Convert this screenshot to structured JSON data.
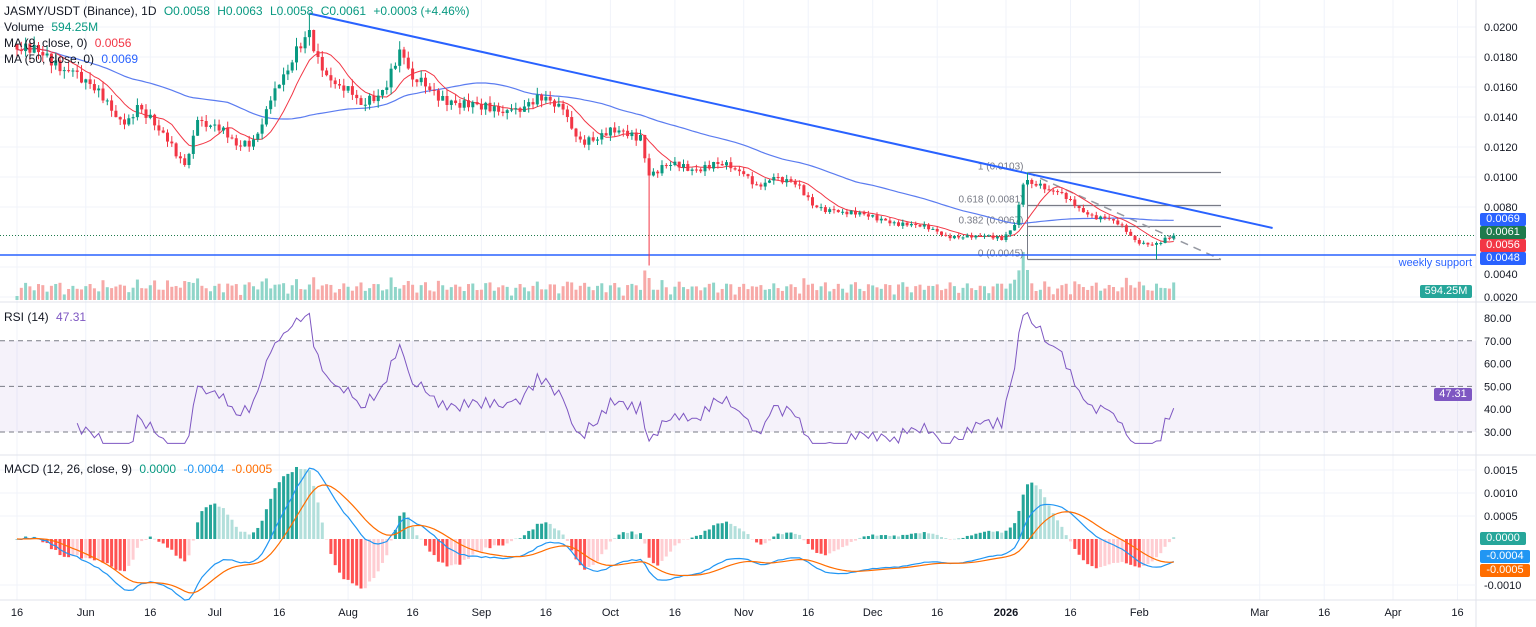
{
  "header": {
    "symbol": "JASMY/USDT (Binance), 1D",
    "open": "O0.0058",
    "high": "H0.0063",
    "low": "L0.0058",
    "close": "C0.0061",
    "change": "+0.0003 (+4.46%)",
    "volume_label": "Volume",
    "volume_value": "594.25M",
    "ma9_label": "MA (9, close, 0)",
    "ma9_value": "0.0056",
    "ma50_label": "MA (50, close, 0)",
    "ma50_value": "0.0069"
  },
  "rsi": {
    "label": "RSI (14)",
    "value": "47.31",
    "ticks": [
      "80.00",
      "70.00",
      "60.00",
      "50.00",
      "40.00",
      "30.00"
    ]
  },
  "macd": {
    "label": "MACD (12, 26, close, 9)",
    "hist": "0.0000",
    "macd": "-0.0004",
    "signal": "-0.0005",
    "ticks": [
      "0.0015",
      "0.0010",
      "0.0005",
      "-0.0010"
    ]
  },
  "badges": {
    "ma50": "0.0069",
    "price": "0.0061",
    "ma9": "0.0056",
    "support": "0.0048",
    "volume": "594.25M",
    "rsi": "47.31",
    "hist": "0.0000",
    "macd": "-0.0004",
    "signal": "-0.0005"
  },
  "annotations": {
    "support_label": "weekly support",
    "fib": [
      "1 (0.0103)",
      "0.618 (0.0081)",
      "0.382 (0.0067)",
      "0 (0.0045)"
    ]
  },
  "colors": {
    "up": "#089981",
    "down": "#f23645",
    "ma9": "#f23645",
    "ma50": "#5b7cf0",
    "trend": "#2962ff",
    "rsi": "#7e57c2",
    "macd": "#2196f3",
    "signal": "#ff6d00"
  },
  "chart_data": {
    "type": "candlestick",
    "interval": "1D",
    "y_ticks": [
      "0.0200",
      "0.0180",
      "0.0160",
      "0.0140",
      "0.0120",
      "0.0100",
      "0.0080",
      "0.0040",
      "0.0020"
    ],
    "x_ticks": [
      {
        "label": "16",
        "date": "2025-05-16"
      },
      {
        "label": "Jun",
        "date": "2025-06-01"
      },
      {
        "label": "16",
        "date": "2025-06-16"
      },
      {
        "label": "Jul",
        "date": "2025-07-01"
      },
      {
        "label": "16",
        "date": "2025-07-16"
      },
      {
        "label": "Aug",
        "date": "2025-08-01"
      },
      {
        "label": "16",
        "date": "2025-08-16"
      },
      {
        "label": "Sep",
        "date": "2025-09-01"
      },
      {
        "label": "16",
        "date": "2025-09-16"
      },
      {
        "label": "Oct",
        "date": "2025-10-01"
      },
      {
        "label": "16",
        "date": "2025-10-16"
      },
      {
        "label": "Nov",
        "date": "2025-11-01"
      },
      {
        "label": "16",
        "date": "2025-11-16"
      },
      {
        "label": "Dec",
        "date": "2025-12-01"
      },
      {
        "label": "16",
        "date": "2025-12-16"
      },
      {
        "label": "2026",
        "date": "2026-01-01"
      },
      {
        "label": "16",
        "date": "2026-01-16"
      },
      {
        "label": "Feb",
        "date": "2026-02-01"
      },
      {
        "label": "Mar",
        "date": "2026-03-01"
      },
      {
        "label": "16",
        "date": "2026-03-16"
      },
      {
        "label": "Apr",
        "date": "2026-04-01"
      },
      {
        "label": "16",
        "date": "2026-04-16"
      }
    ],
    "close_keypoints": [
      [
        "2025-05-16",
        0.0185
      ],
      [
        "2025-05-22",
        0.0181
      ],
      [
        "2025-05-29",
        0.0171
      ],
      [
        "2025-06-05",
        0.0151
      ],
      [
        "2025-06-10",
        0.0135
      ],
      [
        "2025-06-13",
        0.0148
      ],
      [
        "2025-06-18",
        0.0131
      ],
      [
        "2025-06-24",
        0.0108
      ],
      [
        "2025-06-27",
        0.0138
      ],
      [
        "2025-07-02",
        0.0131
      ],
      [
        "2025-07-06",
        0.0121
      ],
      [
        "2025-07-10",
        0.0125
      ],
      [
        "2025-07-14",
        0.0151
      ],
      [
        "2025-07-18",
        0.0171
      ],
      [
        "2025-07-23",
        0.0198
      ],
      [
        "2025-07-26",
        0.0171
      ],
      [
        "2025-07-30",
        0.0161
      ],
      [
        "2025-08-04",
        0.0148
      ],
      [
        "2025-08-09",
        0.0158
      ],
      [
        "2025-08-13",
        0.0185
      ],
      [
        "2025-08-16",
        0.0165
      ],
      [
        "2025-08-20",
        0.0158
      ],
      [
        "2025-08-25",
        0.0151
      ],
      [
        "2025-09-01",
        0.0145
      ],
      [
        "2025-09-08",
        0.0145
      ],
      [
        "2025-09-15",
        0.0151
      ],
      [
        "2025-09-20",
        0.0145
      ],
      [
        "2025-09-24",
        0.0125
      ],
      [
        "2025-09-28",
        0.0125
      ],
      [
        "2025-10-03",
        0.0131
      ],
      [
        "2025-10-08",
        0.0128
      ],
      [
        "2025-10-10",
        0.0101
      ],
      [
        "2025-10-15",
        0.0108
      ],
      [
        "2025-10-20",
        0.0105
      ],
      [
        "2025-10-25",
        0.011
      ],
      [
        "2025-10-30",
        0.0105
      ],
      [
        "2025-11-04",
        0.0095
      ],
      [
        "2025-11-08",
        0.01
      ],
      [
        "2025-11-13",
        0.0095
      ],
      [
        "2025-11-17",
        0.0081
      ],
      [
        "2025-11-22",
        0.0078
      ],
      [
        "2025-11-27",
        0.0075
      ],
      [
        "2025-12-04",
        0.0071
      ],
      [
        "2025-12-11",
        0.0068
      ],
      [
        "2025-12-18",
        0.0061
      ],
      [
        "2025-12-25",
        0.0061
      ],
      [
        "2025-12-31",
        0.0058
      ],
      [
        "2026-01-03",
        0.0068
      ],
      [
        "2026-01-05",
        0.0095
      ],
      [
        "2026-01-06",
        0.0098
      ],
      [
        "2026-01-11",
        0.0091
      ],
      [
        "2026-01-16",
        0.0085
      ],
      [
        "2026-01-20",
        0.0075
      ],
      [
        "2026-01-26",
        0.0071
      ],
      [
        "2026-01-31",
        0.0058
      ],
      [
        "2026-02-03",
        0.0055
      ],
      [
        "2026-02-05",
        0.0056
      ],
      [
        "2026-02-09",
        0.0061
      ]
    ],
    "wicks": [
      [
        "2025-07-23",
        0.0209
      ],
      [
        "2025-10-10",
        0.0041
      ],
      [
        "2026-01-06",
        0.0103
      ],
      [
        "2026-02-05",
        0.0045
      ]
    ],
    "volume_spikes": [
      "2025-10-10",
      "2026-01-05",
      "2026-01-06"
    ],
    "trendline": {
      "from": [
        "2025-07-23",
        0.0209
      ],
      "to": [
        "2026-03-04",
        0.0066
      ]
    },
    "support": 0.0048,
    "current_price": 0.0061,
    "fib": {
      "from": "2026-01-06",
      "to": "2026-02-20",
      "levels": [
        0.0103,
        0.0081,
        0.0067,
        0.0045
      ]
    },
    "rsi_levels": [
      70,
      50,
      30
    ],
    "rsi_range": [
      25,
      85
    ],
    "macd_range": [
      -0.00135,
      0.0018
    ]
  }
}
